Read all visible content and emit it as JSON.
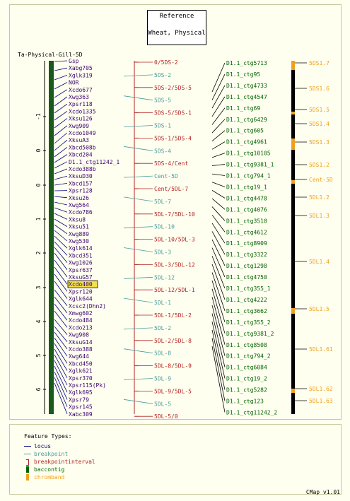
{
  "reference": {
    "title": "Reference",
    "subtitle": "Wheat, Physical"
  },
  "map_title": "Ta-Physical-Gill-5D",
  "axis_ticks": [
    "-1",
    "0",
    "0",
    "1",
    "2",
    "3",
    "4",
    "5",
    "6"
  ],
  "loci": [
    "Gsp",
    "Xabg705",
    "Xglk319",
    "NOR",
    "Xcdo677",
    "Xwg363",
    "Xpsr118",
    "Xcdo1335",
    "Xksu126",
    "Xwg909",
    "Xcdo1049",
    "XksuA3",
    "Xbcd508b",
    "Xbcd204",
    "D1.1_ctg11242_1",
    "Xcdo388b",
    "XksuD30",
    "Xbcd157",
    "Xpsr128",
    "Xksu26",
    "Xwg564",
    "Xcdo786",
    "Xksu8",
    "Xksu51",
    "Xwg889",
    "Xwg530",
    "Xglk614",
    "Xbcd351",
    "Xwg1026",
    "Xpsr637",
    "XksuG57",
    "Xcdo400",
    "Xpsr120",
    "Xglk644",
    "Xcsc2(Dhn2)",
    "Xmwg602",
    "Xcdo484",
    "Xcdo213",
    "Xwg908",
    "XksuG14",
    "Xcdo388",
    "Xwg644",
    "Xbcd450",
    "Xglk621",
    "Xpsr370",
    "Xpsr115(Pk)",
    "Xglk695",
    "Xpsr79",
    "Xpsr145",
    "Xabc309"
  ],
  "highlighted_locus": "Xcdo400",
  "breakpoint_labels": [
    {
      "text": "0/5DS-2",
      "type": "interval"
    },
    {
      "text": "5DS-2",
      "type": "breakpoint"
    },
    {
      "text": "5DS-2/5DS-5",
      "type": "interval"
    },
    {
      "text": "5DS-5",
      "type": "breakpoint"
    },
    {
      "text": "5DS-5/5DS-1",
      "type": "interval"
    },
    {
      "text": "5DS-1",
      "type": "breakpoint"
    },
    {
      "text": "5DS-1/5DS-4",
      "type": "interval"
    },
    {
      "text": "5DS-4",
      "type": "breakpoint"
    },
    {
      "text": "5DS-4/Cent",
      "type": "interval"
    },
    {
      "text": "Cent-5D",
      "type": "breakpoint"
    },
    {
      "text": "Cent/5DL-7",
      "type": "interval"
    },
    {
      "text": "5DL-7",
      "type": "breakpoint"
    },
    {
      "text": "5DL-7/5DL-10",
      "type": "interval"
    },
    {
      "text": "5DL-10",
      "type": "breakpoint"
    },
    {
      "text": "5DL-10/5DL-3",
      "type": "interval"
    },
    {
      "text": "5DL-3",
      "type": "breakpoint"
    },
    {
      "text": "5DL-3/5DL-12",
      "type": "interval"
    },
    {
      "text": "5DL-12",
      "type": "breakpoint"
    },
    {
      "text": "5DL-12/5DL-1",
      "type": "interval"
    },
    {
      "text": "5DL-1",
      "type": "breakpoint"
    },
    {
      "text": "5DL-1/5DL-2",
      "type": "interval"
    },
    {
      "text": "5DL-2",
      "type": "breakpoint"
    },
    {
      "text": "5DL-2/5DL-8",
      "type": "interval"
    },
    {
      "text": "5DL-8",
      "type": "breakpoint"
    },
    {
      "text": "5DL-8/5DL-9",
      "type": "interval"
    },
    {
      "text": "5DL-9",
      "type": "breakpoint"
    },
    {
      "text": "5DL-9/5DL-5",
      "type": "interval"
    },
    {
      "text": "5DL-5",
      "type": "breakpoint"
    },
    {
      "text": "5DL-5/0",
      "type": "interval"
    }
  ],
  "contigs": [
    "D1.1_ctg5713",
    "D1.1_ctg95",
    "D1.1_ctg4733",
    "D1.1_ctg4547",
    "D1.1_ctg69",
    "D1.1_ctg6429",
    "D1.1_ctg605",
    "D1.1_ctg4961",
    "D1.1_ctg10105",
    "D1.1_ctg9381_1",
    "D1.1_ctg794_1",
    "D1.1_ctg19_1",
    "D1.1_ctg4478",
    "D1.1_ctg4076",
    "D1.1_ctg3510",
    "D1.1_ctg4612",
    "D1.1_ctg8909",
    "D1.1_ctg3322",
    "D1.1_ctg1298",
    "D1.1_ctg4750",
    "D1.1_ctg355_1",
    "D1.1_ctg4222",
    "D1.1_ctg3662",
    "D1.1_ctg355_2",
    "D1.1_ctg9381_2",
    "D1.1_ctg8508",
    "D1.1_ctg794_2",
    "D1.1_ctg6084",
    "D1.1_ctg19_2",
    "D1.1_ctg5282",
    "D1.1_ctg123",
    "D1.1_ctg11242_2"
  ],
  "chrombands": [
    "5DS1.7",
    "5DS1.6",
    "5DS1.5",
    "5DS1.4",
    "5DS1.3",
    "5DS1.2",
    "Cent-5D",
    "5DL1.2",
    "5DL1.3",
    "5DL1.4",
    "5DL1.5",
    "5DL1.61",
    "5DL1.62",
    "5DL1.63"
  ],
  "legend": {
    "title": "Feature Types:",
    "items": [
      {
        "label": "locus",
        "symbol": "line",
        "color": "#000080"
      },
      {
        "label": "breakpoint",
        "symbol": "line",
        "color": "#4a9a9a"
      },
      {
        "label": "breakpointinterval",
        "symbol": "bracket",
        "color": "#b22222"
      },
      {
        "label": "baccontig",
        "symbol": "bar",
        "color": "#006400"
      },
      {
        "label": "chromband",
        "symbol": "bar",
        "color": "#f0a020"
      }
    ]
  },
  "version": "CMap v1.01",
  "colors": {
    "locus": "#3a0070",
    "breakpoint": "#4a9a9a",
    "interval": "#b22222",
    "contig": "#006400",
    "chromband": "#f0a020",
    "contig_bar": "#1a5a1a",
    "band_bar": "#000000"
  }
}
